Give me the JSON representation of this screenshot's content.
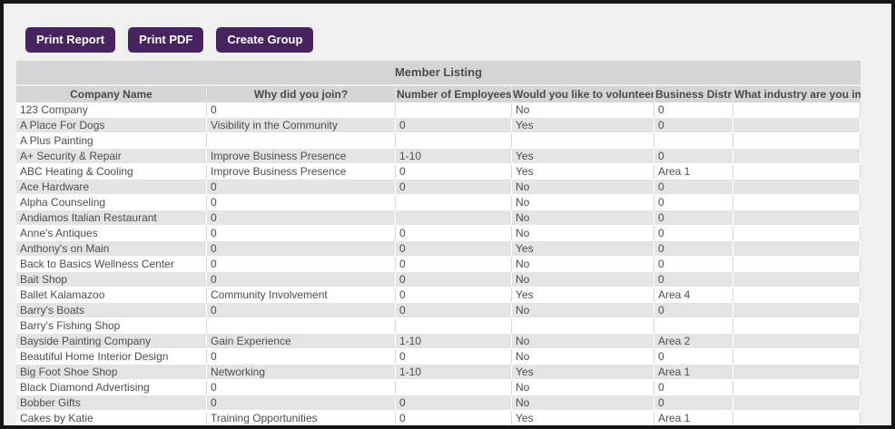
{
  "toolbar": {
    "buttons": [
      {
        "label": "Print Report"
      },
      {
        "label": "Print PDF"
      },
      {
        "label": "Create Group"
      }
    ]
  },
  "table": {
    "title": "Member Listing",
    "columns": [
      "Company Name",
      "Why did you join?",
      "Number of Employees",
      "Would you like to volunteer?",
      "Business District",
      "What industry are you in?"
    ],
    "rows": [
      [
        "123 Company",
        "0",
        "",
        "No",
        "0",
        ""
      ],
      [
        "A Place For Dogs",
        "Visibility in the Community",
        "0",
        "Yes",
        "0",
        ""
      ],
      [
        "A Plus Painting",
        "",
        "",
        "",
        "",
        ""
      ],
      [
        "A+ Security & Repair",
        "Improve Business Presence",
        "1-10",
        "Yes",
        "0",
        ""
      ],
      [
        "ABC Heating & Cooling",
        "Improve Business Presence",
        "0",
        "Yes",
        "Area 1",
        ""
      ],
      [
        "Ace Hardware",
        "0",
        "0",
        "No",
        "0",
        ""
      ],
      [
        "Alpha Counseling",
        "0",
        "",
        "No",
        "0",
        ""
      ],
      [
        "Andiamos Italian Restaurant",
        "0",
        "",
        "No",
        "0",
        ""
      ],
      [
        "Anne's Antiques",
        "0",
        "0",
        "No",
        "0",
        ""
      ],
      [
        "Anthony's on Main",
        "0",
        "0",
        "Yes",
        "0",
        ""
      ],
      [
        "Back to Basics Wellness Center",
        "0",
        "0",
        "No",
        "0",
        ""
      ],
      [
        "Bait Shop",
        "0",
        "0",
        "No",
        "0",
        ""
      ],
      [
        "Ballet Kalamazoo",
        "Community Involvement",
        "0",
        "Yes",
        "Area 4",
        ""
      ],
      [
        "Barry's Boats",
        "0",
        "0",
        "No",
        "0",
        ""
      ],
      [
        "Barry's Fishing Shop",
        "",
        "",
        "",
        "",
        ""
      ],
      [
        "Bayside Painting Company",
        "Gain Experience",
        "1-10",
        "No",
        "Area 2",
        ""
      ],
      [
        "Beautiful Home Interior Design",
        "0",
        "0",
        "No",
        "0",
        ""
      ],
      [
        "Big Foot Shoe Shop",
        "Networking",
        "1-10",
        "Yes",
        "Area 1",
        ""
      ],
      [
        "Black Diamond Advertising",
        "0",
        "",
        "No",
        "0",
        ""
      ],
      [
        "Bobber Gifts",
        "0",
        "0",
        "No",
        "0",
        ""
      ],
      [
        "Cakes by Katie",
        "Training Opportunities",
        "0",
        "Yes",
        "Area 1",
        ""
      ]
    ]
  },
  "colors": {
    "button_bg": "#47245f",
    "button_text": "#ffffff",
    "band_bg": "#d5d5d5",
    "stripe_bg": "#e4e4e4",
    "text": "#4d4d4d",
    "page_bg": "#f0f0f0",
    "frame_border": "#151515"
  }
}
